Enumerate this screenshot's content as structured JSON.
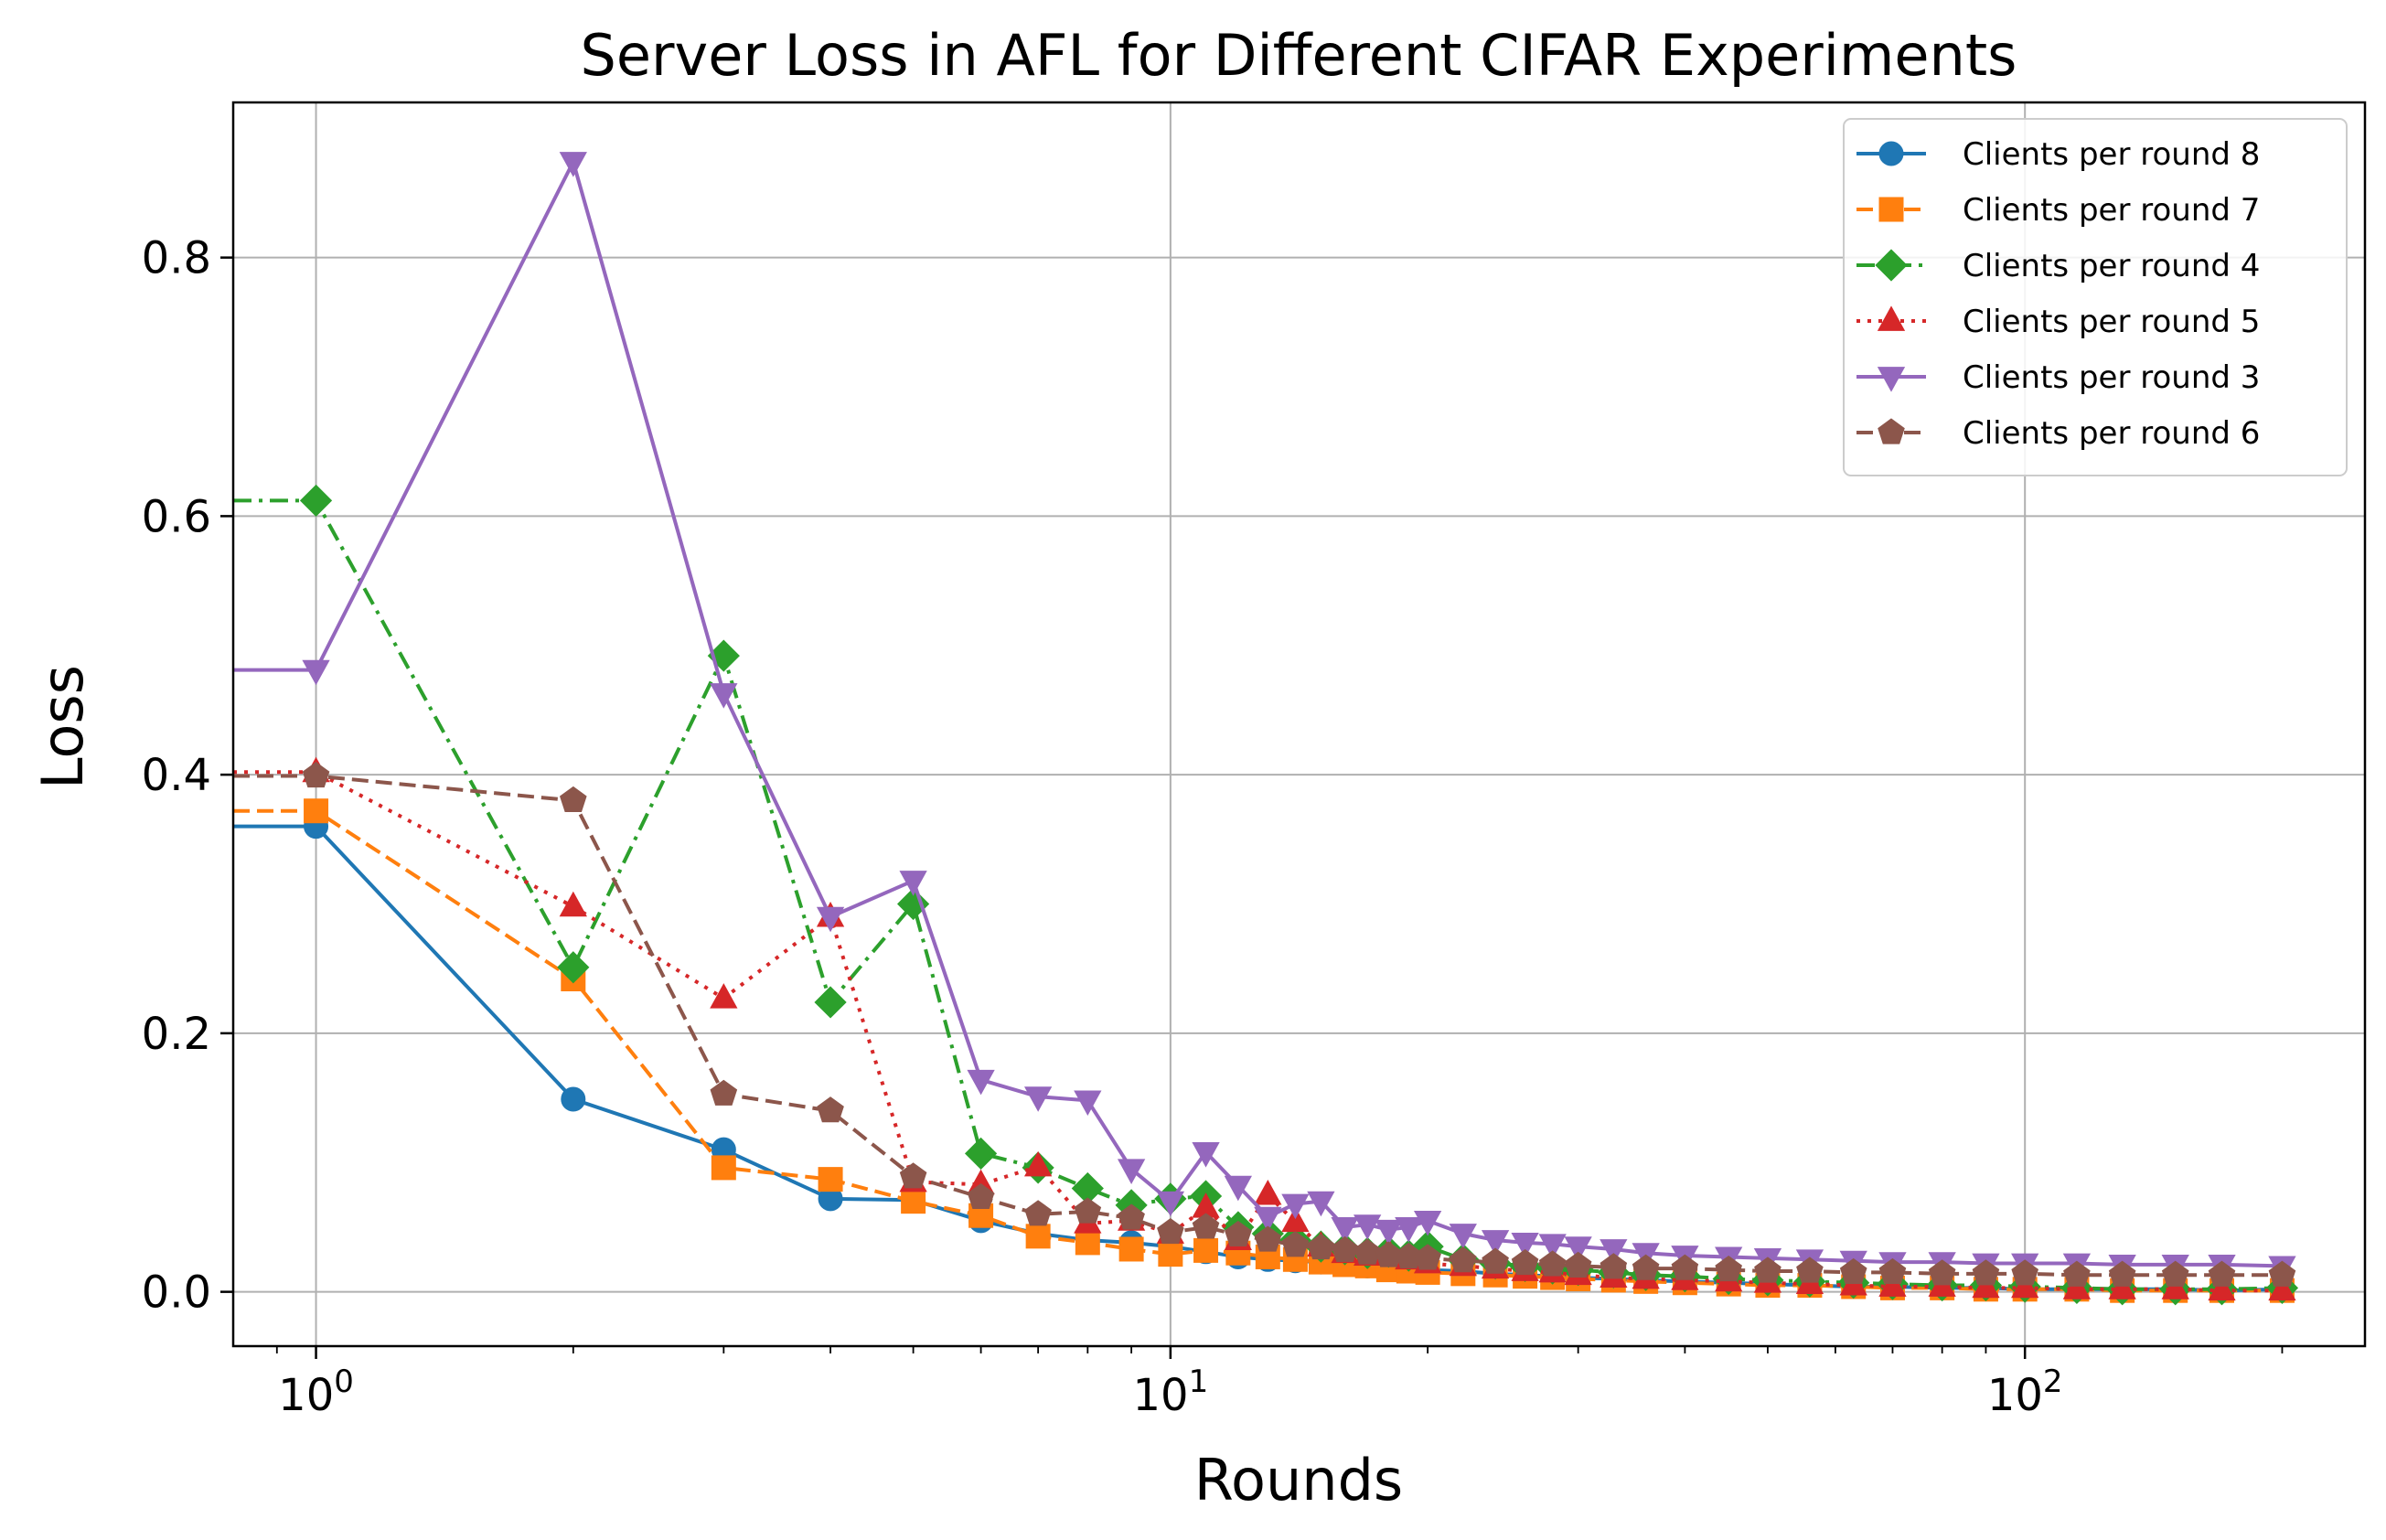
{
  "chart_data": {
    "type": "line",
    "title": "Server Loss in AFL for Different CIFAR Experiments",
    "xlabel": "Rounds",
    "ylabel": "Loss",
    "xscale": "log",
    "xlim": [
      0.8,
      250
    ],
    "ylim": [
      -0.042,
      0.92
    ],
    "xticks": [
      {
        "value": 1,
        "base": "10",
        "exp": "0"
      },
      {
        "value": 10,
        "base": "10",
        "exp": "1"
      },
      {
        "value": 100,
        "base": "10",
        "exp": "2"
      }
    ],
    "yticks": [
      {
        "value": 0.0,
        "label": "0.0"
      },
      {
        "value": 0.2,
        "label": "0.2"
      },
      {
        "value": 0.4,
        "label": "0.4"
      },
      {
        "value": 0.6,
        "label": "0.6"
      },
      {
        "value": 0.8,
        "label": "0.8"
      }
    ],
    "grid": true,
    "legend_position": "top-right",
    "series": [
      {
        "name": "Clients per round 8",
        "color": "#1f77b4",
        "marker": "circle",
        "linestyle": "solid",
        "x": [
          1,
          2,
          3,
          4,
          5,
          6,
          7,
          8,
          9,
          10,
          11,
          12,
          13,
          14,
          15,
          16,
          17,
          18,
          19,
          20,
          22,
          24,
          26,
          28,
          30,
          33,
          36,
          40,
          45,
          50,
          56,
          63,
          70,
          80,
          90,
          100,
          115,
          130,
          150,
          170,
          200
        ],
        "y": [
          0.36,
          0.149,
          0.11,
          0.072,
          0.071,
          0.055,
          0.045,
          0.04,
          0.038,
          0.035,
          0.031,
          0.027,
          0.025,
          0.024,
          0.023,
          0.022,
          0.02,
          0.019,
          0.018,
          0.017,
          0.016,
          0.014,
          0.013,
          0.012,
          0.011,
          0.01,
          0.009,
          0.008,
          0.007,
          0.006,
          0.005,
          0.004,
          0.004,
          0.003,
          0.003,
          0.002,
          0.002,
          0.002,
          0.002,
          0.001,
          0.002
        ]
      },
      {
        "name": "Clients per round 7",
        "color": "#ff7f0e",
        "marker": "square",
        "linestyle": "dashed",
        "x": [
          1,
          2,
          3,
          4,
          5,
          6,
          7,
          8,
          9,
          10,
          11,
          12,
          13,
          14,
          15,
          16,
          17,
          18,
          19,
          20,
          22,
          24,
          26,
          28,
          30,
          33,
          36,
          40,
          45,
          50,
          56,
          63,
          70,
          80,
          90,
          100,
          115,
          130,
          150,
          170,
          200
        ],
        "y": [
          0.372,
          0.242,
          0.096,
          0.087,
          0.07,
          0.059,
          0.043,
          0.038,
          0.033,
          0.029,
          0.032,
          0.03,
          0.027,
          0.025,
          0.023,
          0.021,
          0.02,
          0.017,
          0.016,
          0.015,
          0.014,
          0.013,
          0.012,
          0.011,
          0.01,
          0.009,
          0.008,
          0.007,
          0.006,
          0.005,
          0.005,
          0.004,
          0.003,
          0.003,
          0.002,
          0.002,
          0.002,
          0.001,
          0.001,
          0.001,
          0.001
        ]
      },
      {
        "name": "Clients per round 4",
        "color": "#2ca02c",
        "marker": "diamond",
        "linestyle": "dashdot",
        "x": [
          1,
          2,
          3,
          4,
          5,
          6,
          7,
          8,
          9,
          10,
          11,
          12,
          13,
          14,
          15,
          16,
          17,
          18,
          19,
          20,
          22,
          24,
          26,
          28,
          30,
          33,
          36,
          40,
          45,
          50,
          56,
          63,
          70,
          80,
          90,
          100,
          115,
          130,
          150,
          170,
          200
        ],
        "y": [
          0.612,
          0.251,
          0.492,
          0.224,
          0.3,
          0.107,
          0.096,
          0.08,
          0.067,
          0.072,
          0.074,
          0.05,
          0.045,
          0.04,
          0.035,
          0.033,
          0.03,
          0.031,
          0.028,
          0.035,
          0.025,
          0.022,
          0.02,
          0.018,
          0.017,
          0.015,
          0.013,
          0.012,
          0.01,
          0.009,
          0.008,
          0.007,
          0.006,
          0.005,
          0.005,
          0.004,
          0.003,
          0.002,
          0.002,
          0.002,
          0.003
        ]
      },
      {
        "name": "Clients per round 5",
        "color": "#d62728",
        "marker": "triangle-up",
        "linestyle": "dotted",
        "x": [
          1,
          2,
          3,
          4,
          5,
          6,
          7,
          8,
          9,
          10,
          11,
          12,
          13,
          14,
          15,
          16,
          17,
          18,
          19,
          20,
          22,
          24,
          26,
          28,
          30,
          33,
          36,
          40,
          45,
          50,
          56,
          63,
          70,
          80,
          90,
          100,
          115,
          130,
          150,
          170,
          200
        ],
        "y": [
          0.402,
          0.298,
          0.227,
          0.29,
          0.085,
          0.083,
          0.097,
          0.053,
          0.055,
          0.045,
          0.065,
          0.04,
          0.075,
          0.054,
          0.035,
          0.03,
          0.028,
          0.03,
          0.025,
          0.022,
          0.02,
          0.018,
          0.016,
          0.015,
          0.013,
          0.011,
          0.01,
          0.009,
          0.008,
          0.007,
          0.006,
          0.005,
          0.004,
          0.004,
          0.003,
          0.003,
          0.002,
          0.002,
          0.002,
          0.001,
          0.001
        ]
      },
      {
        "name": "Clients per round 3",
        "color": "#9467bd",
        "marker": "triangle-down",
        "linestyle": "solid",
        "x": [
          1,
          2,
          3,
          4,
          5,
          6,
          7,
          8,
          9,
          10,
          11,
          12,
          13,
          14,
          15,
          16,
          17,
          18,
          19,
          20,
          22,
          24,
          26,
          28,
          30,
          33,
          36,
          40,
          45,
          50,
          56,
          63,
          70,
          80,
          90,
          100,
          115,
          130,
          150,
          170,
          200
        ],
        "y": [
          0.481,
          0.874,
          0.463,
          0.29,
          0.318,
          0.164,
          0.151,
          0.148,
          0.095,
          0.07,
          0.108,
          0.082,
          0.058,
          0.068,
          0.07,
          0.05,
          0.052,
          0.048,
          0.05,
          0.055,
          0.045,
          0.04,
          0.038,
          0.037,
          0.035,
          0.033,
          0.03,
          0.028,
          0.027,
          0.026,
          0.025,
          0.024,
          0.023,
          0.023,
          0.022,
          0.022,
          0.022,
          0.021,
          0.021,
          0.021,
          0.02
        ]
      },
      {
        "name": "Clients per round 6",
        "color": "#8c564b",
        "marker": "pentagon",
        "linestyle": "dashed",
        "x": [
          1,
          2,
          3,
          4,
          5,
          6,
          7,
          8,
          9,
          10,
          11,
          12,
          13,
          14,
          15,
          16,
          17,
          18,
          19,
          20,
          22,
          24,
          26,
          28,
          30,
          33,
          36,
          40,
          45,
          50,
          56,
          63,
          70,
          80,
          90,
          100,
          115,
          130,
          150,
          170,
          200
        ],
        "y": [
          0.399,
          0.38,
          0.153,
          0.14,
          0.089,
          0.073,
          0.06,
          0.062,
          0.057,
          0.046,
          0.05,
          0.044,
          0.04,
          0.036,
          0.034,
          0.032,
          0.03,
          0.028,
          0.027,
          0.026,
          0.024,
          0.023,
          0.022,
          0.021,
          0.02,
          0.019,
          0.018,
          0.018,
          0.017,
          0.016,
          0.016,
          0.015,
          0.015,
          0.014,
          0.014,
          0.014,
          0.013,
          0.013,
          0.013,
          0.013,
          0.013
        ]
      }
    ]
  }
}
